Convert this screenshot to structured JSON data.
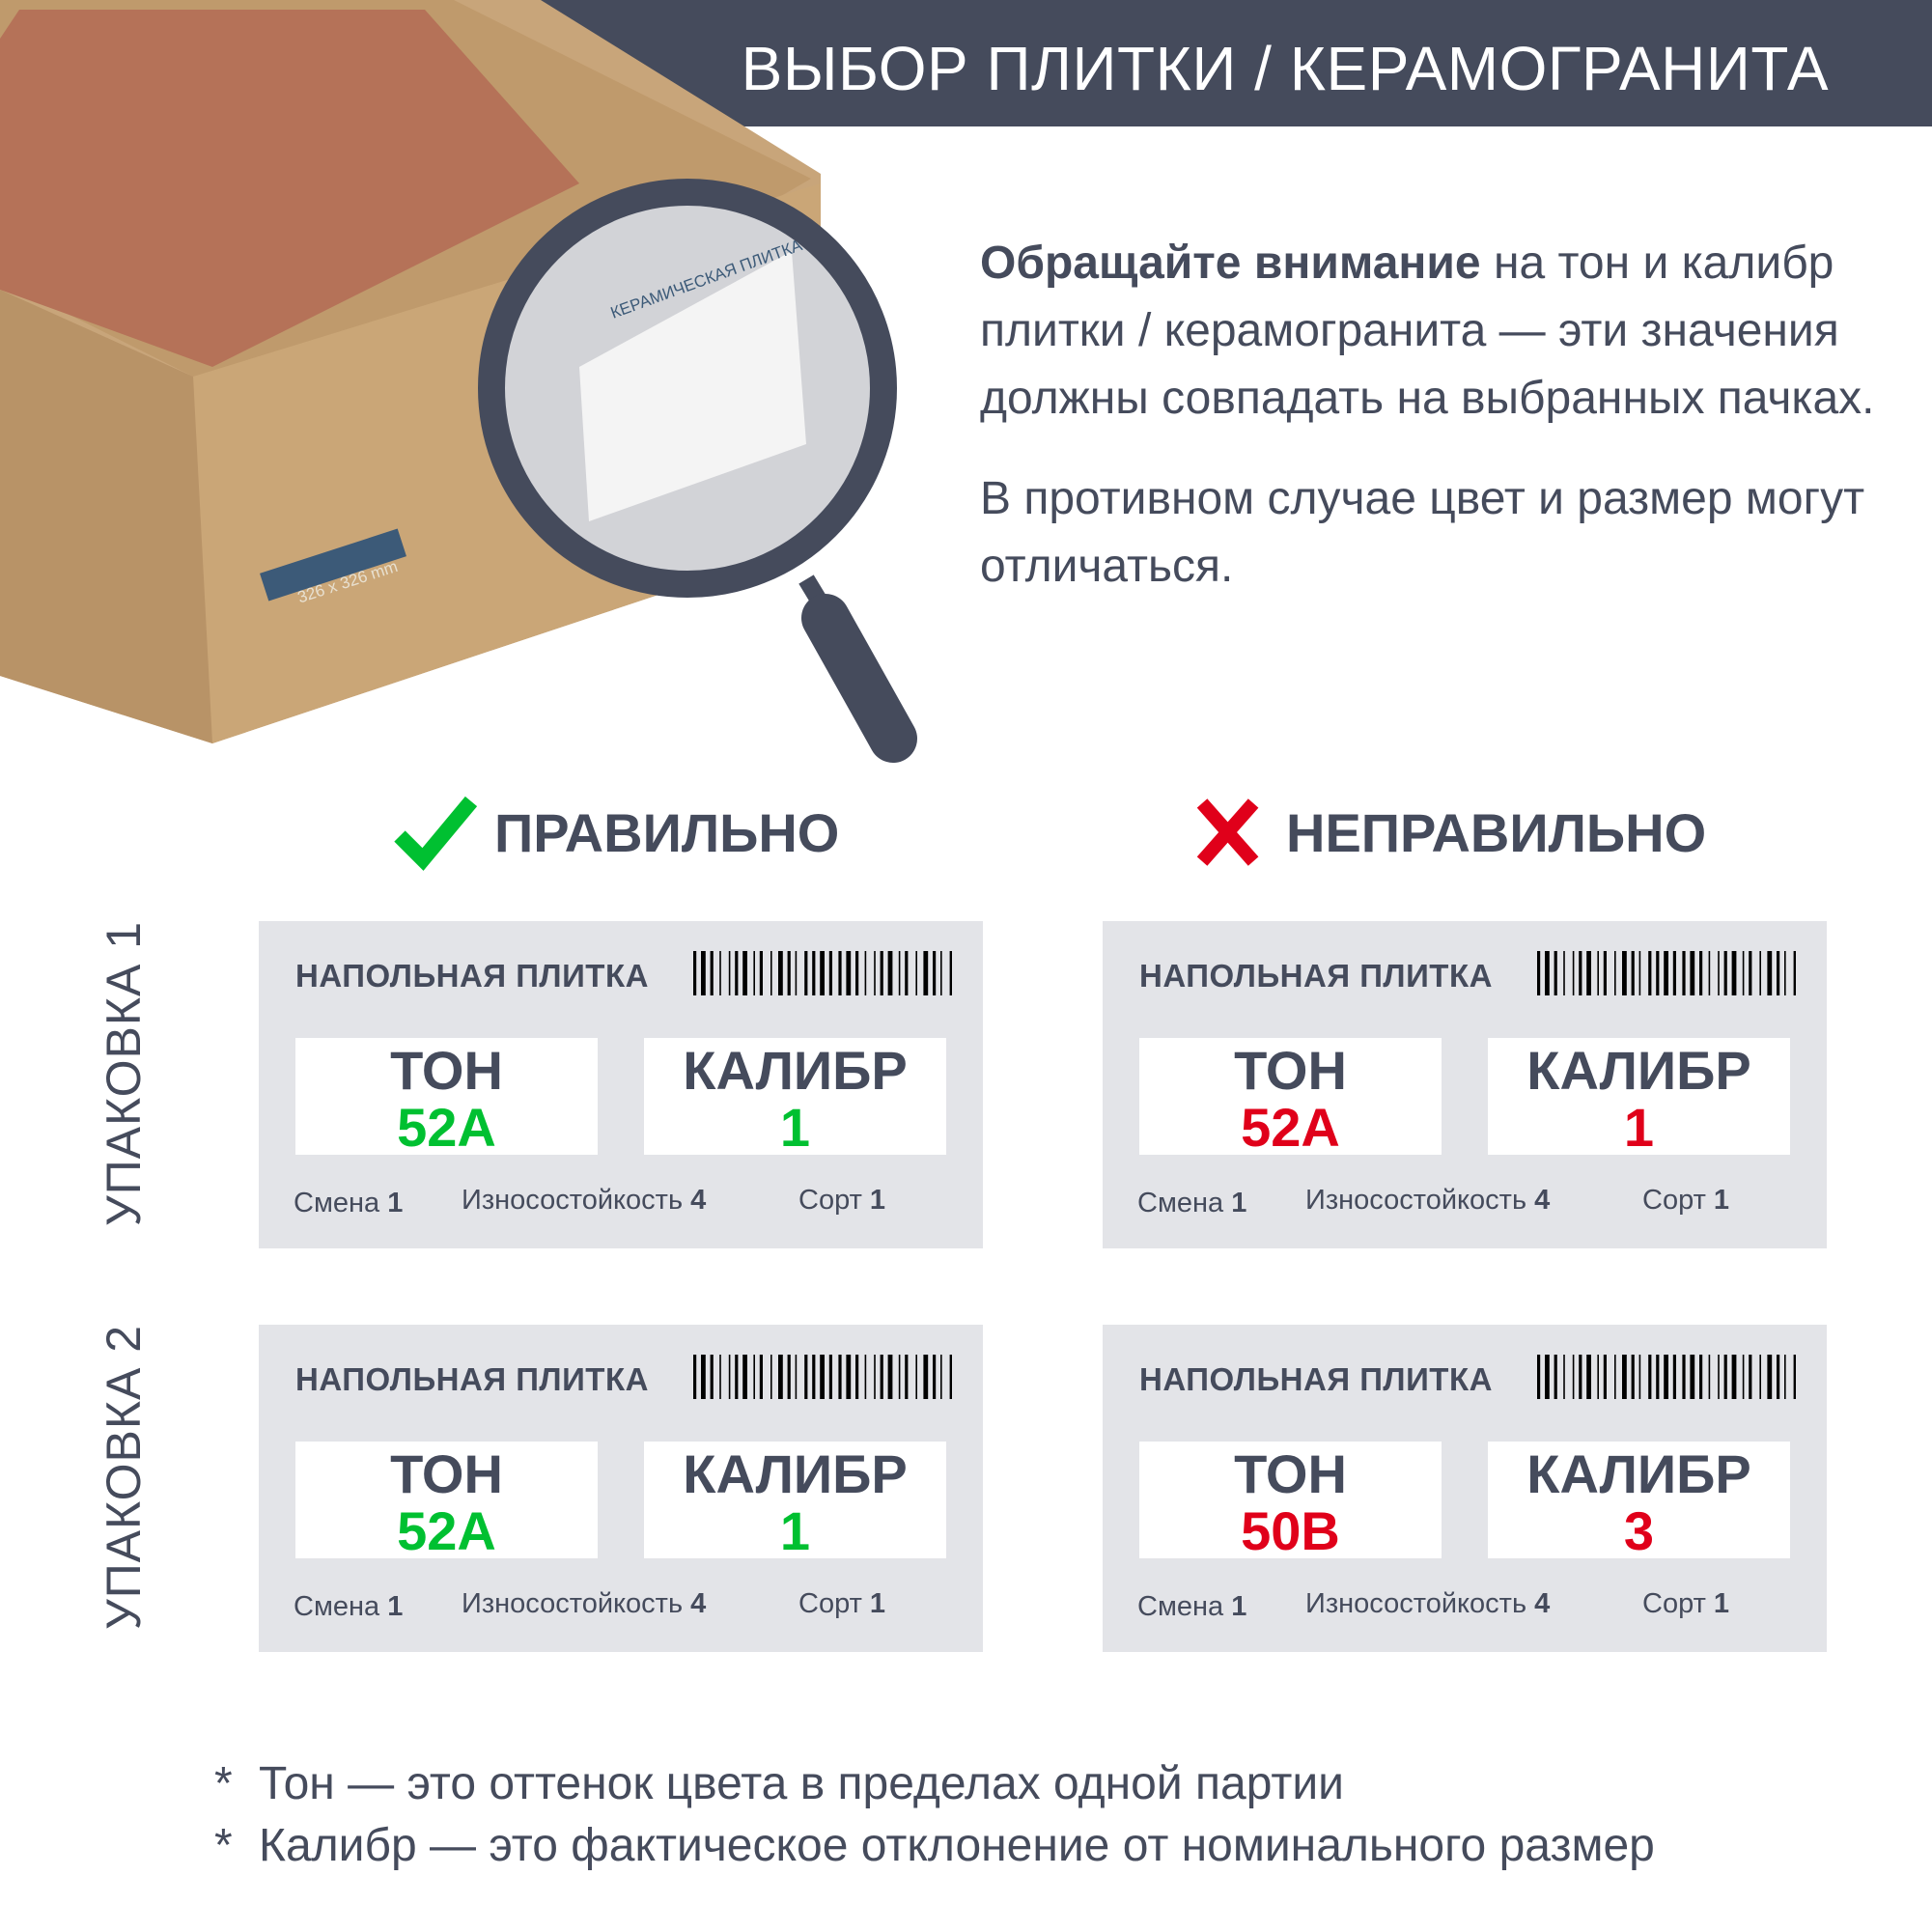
{
  "header": {
    "title": "ВЫБОР ПЛИТКИ / КЕРАМОГРАНИТА"
  },
  "intro": {
    "bold": "Обращайте внимание",
    "rest": " на тон и калибр плитки / керамогранита — эти значения должны совпадать на выбранных пачках.",
    "warning": "В противном случае цвет и размер могут отличаться."
  },
  "colors": {
    "dark": "#454b5c",
    "correct": "#00c031",
    "wrong": "#e0001a",
    "card_bg": "#e3e4e8"
  },
  "photo": {
    "box_label": "КЕРАМИЧЕСКАЯ ПЛИТКА",
    "size_label": "326 x 326 mm",
    "icon": "magnifier-icon"
  },
  "verdicts": {
    "correct": "ПРАВИЛЬНО",
    "wrong": "НЕПРАВИЛЬНО"
  },
  "packs": [
    "УПАКОВКА 1",
    "УПАКОВКА 2"
  ],
  "labels": {
    "kind": "НАПОЛЬНАЯ ПЛИТКА",
    "tone": "ТОН",
    "caliber": "КАЛИБР",
    "shift": "Смена",
    "wear": "Износостойкость",
    "grade": "Сорт"
  },
  "cards": {
    "correct_1": {
      "tone": "52A",
      "caliber": "1",
      "shift": "1",
      "wear": "4",
      "grade": "1"
    },
    "correct_2": {
      "tone": "52A",
      "caliber": "1",
      "shift": "1",
      "wear": "4",
      "grade": "1"
    },
    "wrong_1": {
      "tone": "52A",
      "caliber": "1",
      "shift": "1",
      "wear": "4",
      "grade": "1"
    },
    "wrong_2": {
      "tone": "50B",
      "caliber": "3",
      "shift": "1",
      "wear": "4",
      "grade": "1"
    }
  },
  "footnotes": [
    {
      "star": "*",
      "text": "Тон  — это оттенок цвета в пределах одной партии"
    },
    {
      "star": "*",
      "text": "Калибр  — это фактическое отклонение от номинального размер"
    }
  ]
}
